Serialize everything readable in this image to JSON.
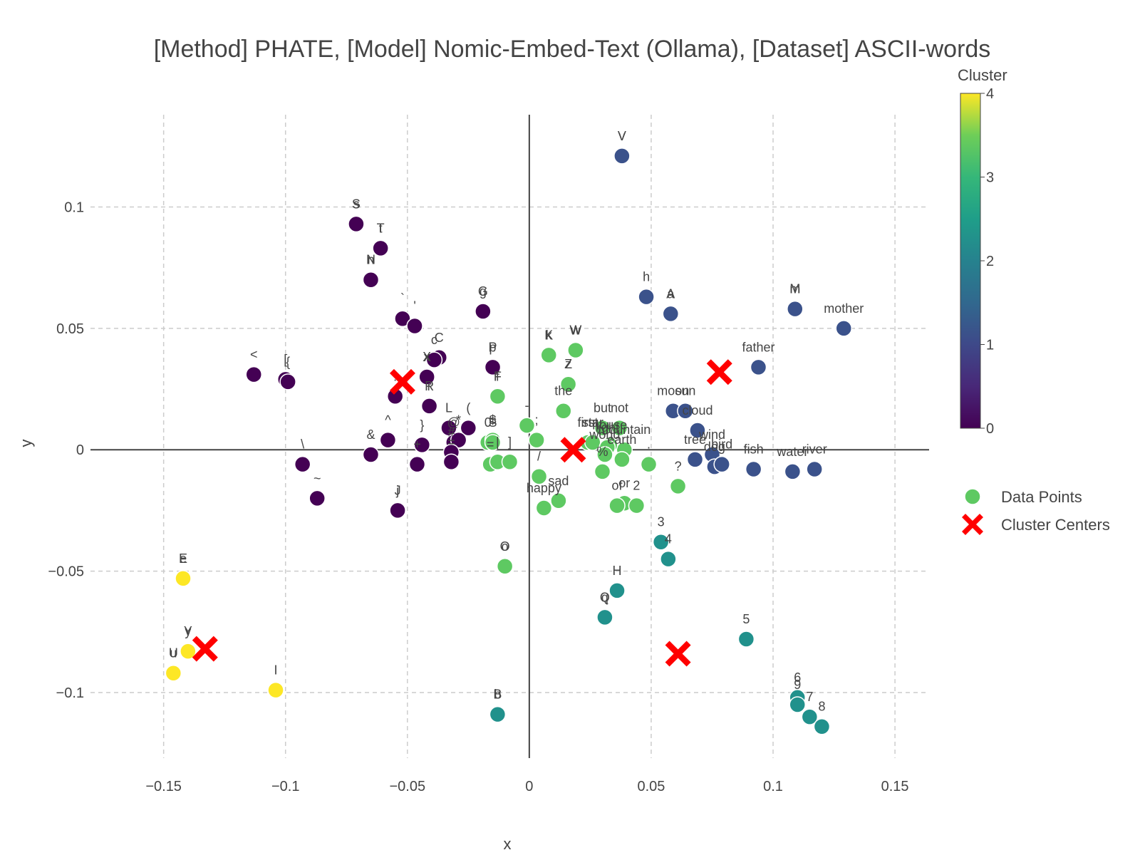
{
  "chart_data": {
    "type": "scatter",
    "title": "[Method] PHATE, [Model] Nomic-Embed-Text (Ollama), [Dataset] ASCII-words",
    "xlabel": "x",
    "ylabel": "y",
    "xlim": [
      -0.18,
      0.164
    ],
    "ylim": [
      -0.127,
      0.138
    ],
    "xticks": [
      -0.15,
      -0.1,
      -0.05,
      0,
      0.05,
      0.1,
      0.15
    ],
    "xtick_labels": [
      "−0.15",
      "−0.1",
      "−0.05",
      "0",
      "0.05",
      "0.1",
      "0.15"
    ],
    "yticks": [
      -0.1,
      -0.05,
      0,
      0.05,
      0.1
    ],
    "ytick_labels": [
      "−0.1",
      "−0.05",
      "0",
      "0.05",
      "0.1"
    ],
    "grid": true,
    "colorbar": {
      "title": "Cluster",
      "min": 0,
      "max": 4,
      "ticks": [
        0,
        1,
        2,
        3,
        4
      ],
      "colorscale": "viridis"
    },
    "legend": {
      "position": "right",
      "entries": [
        "Data Points",
        "Cluster Centers"
      ]
    },
    "cluster_colors": [
      "#440154",
      "#3b528b",
      "#21918c",
      "#5ec962",
      "#fde725"
    ],
    "center_color": "#ff0000",
    "points": [
      {
        "label": "V",
        "x": 0.038,
        "y": 0.121,
        "c": 1
      },
      {
        "label": "v",
        "x": 0.038,
        "y": 0.121,
        "c": 1
      },
      {
        "label": "h",
        "x": 0.048,
        "y": 0.063,
        "c": 1
      },
      {
        "label": "A",
        "x": 0.058,
        "y": 0.056,
        "c": 1
      },
      {
        "label": "a",
        "x": 0.058,
        "y": 0.056,
        "c": 1
      },
      {
        "label": "M",
        "x": 0.109,
        "y": 0.058,
        "c": 1
      },
      {
        "label": "m",
        "x": 0.109,
        "y": 0.058,
        "c": 1
      },
      {
        "label": "mother",
        "x": 0.129,
        "y": 0.05,
        "c": 1
      },
      {
        "label": "father",
        "x": 0.094,
        "y": 0.034,
        "c": 1
      },
      {
        "label": "moon",
        "x": 0.059,
        "y": 0.016,
        "c": 1
      },
      {
        "label": "sun",
        "x": 0.064,
        "y": 0.016,
        "c": 1
      },
      {
        "label": "cloud",
        "x": 0.069,
        "y": 0.008,
        "c": 1
      },
      {
        "label": "wind",
        "x": 0.075,
        "y": -0.002,
        "c": 1
      },
      {
        "label": "tree",
        "x": 0.068,
        "y": -0.004,
        "c": 1
      },
      {
        "label": "dog",
        "x": 0.076,
        "y": -0.007,
        "c": 1
      },
      {
        "label": "bird",
        "x": 0.079,
        "y": -0.006,
        "c": 1
      },
      {
        "label": "fish",
        "x": 0.092,
        "y": -0.008,
        "c": 1
      },
      {
        "label": "water",
        "x": 0.108,
        "y": -0.009,
        "c": 1
      },
      {
        "label": "river",
        "x": 0.117,
        "y": -0.008,
        "c": 1
      },
      {
        "label": "S",
        "x": -0.071,
        "y": 0.093,
        "c": 0
      },
      {
        "label": "s",
        "x": -0.071,
        "y": 0.093,
        "c": 0
      },
      {
        "label": "T",
        "x": -0.061,
        "y": 0.083,
        "c": 0
      },
      {
        "label": "t",
        "x": -0.061,
        "y": 0.083,
        "c": 0
      },
      {
        "label": "N",
        "x": -0.065,
        "y": 0.07,
        "c": 0
      },
      {
        "label": "n",
        "x": -0.065,
        "y": 0.07,
        "c": 0
      },
      {
        "label": "`",
        "x": -0.052,
        "y": 0.054,
        "c": 0
      },
      {
        "label": "'",
        "x": -0.047,
        "y": 0.051,
        "c": 0
      },
      {
        "label": "G",
        "x": -0.019,
        "y": 0.057,
        "c": 0
      },
      {
        "label": "g",
        "x": -0.019,
        "y": 0.057,
        "c": 0
      },
      {
        "label": "C",
        "x": -0.037,
        "y": 0.038,
        "c": 0
      },
      {
        "label": "c",
        "x": -0.039,
        "y": 0.037,
        "c": 0
      },
      {
        "label": "X",
        "x": -0.042,
        "y": 0.03,
        "c": 0
      },
      {
        "label": "x",
        "x": -0.042,
        "y": 0.03,
        "c": 0
      },
      {
        "label": "P",
        "x": -0.015,
        "y": 0.034,
        "c": 0
      },
      {
        "label": "p",
        "x": -0.015,
        "y": 0.034,
        "c": 0
      },
      {
        "label": "<",
        "x": -0.113,
        "y": 0.031,
        "c": 0
      },
      {
        "label": "[",
        "x": -0.1,
        "y": 0.029,
        "c": 0
      },
      {
        "label": "{",
        "x": -0.099,
        "y": 0.028,
        "c": 0
      },
      {
        "label": ":",
        "x": -0.055,
        "y": 0.022,
        "c": 0
      },
      {
        "label": "R",
        "x": -0.041,
        "y": 0.018,
        "c": 0
      },
      {
        "label": "r",
        "x": -0.041,
        "y": 0.018,
        "c": 0
      },
      {
        "label": "L",
        "x": -0.033,
        "y": 0.009,
        "c": 0
      },
      {
        "label": "(",
        "x": -0.025,
        "y": 0.009,
        "c": 0
      },
      {
        "label": "@",
        "x": -0.031,
        "y": 0.003,
        "c": 0
      },
      {
        "label": "*",
        "x": -0.029,
        "y": 0.004,
        "c": 0
      },
      {
        "label": "^",
        "x": -0.058,
        "y": 0.004,
        "c": 0
      },
      {
        "label": "&",
        "x": -0.065,
        "y": -0.002,
        "c": 0
      },
      {
        "label": "}",
        "x": -0.044,
        "y": 0.002,
        "c": 0
      },
      {
        "label": "#",
        "x": -0.032,
        "y": -0.001,
        "c": 0
      },
      {
        "label": "+",
        "x": -0.046,
        "y": -0.006,
        "c": 0
      },
      {
        "label": "=",
        "x": -0.032,
        "y": -0.005,
        "c": 0
      },
      {
        "label": "\\",
        "x": -0.093,
        "y": -0.006,
        "c": 0
      },
      {
        "label": "~",
        "x": -0.087,
        "y": -0.02,
        "c": 0
      },
      {
        "label": "J",
        "x": -0.054,
        "y": -0.025,
        "c": 0
      },
      {
        "label": "j",
        "x": -0.054,
        "y": -0.025,
        "c": 0
      },
      {
        "label": "K",
        "x": 0.008,
        "y": 0.039,
        "c": 3
      },
      {
        "label": "k",
        "x": 0.008,
        "y": 0.039,
        "c": 3
      },
      {
        "label": "W",
        "x": 0.019,
        "y": 0.041,
        "c": 3
      },
      {
        "label": "w",
        "x": 0.019,
        "y": 0.041,
        "c": 3
      },
      {
        "label": "Z",
        "x": 0.016,
        "y": 0.027,
        "c": 3
      },
      {
        "label": "z",
        "x": 0.016,
        "y": 0.027,
        "c": 3
      },
      {
        "label": "F",
        "x": -0.013,
        "y": 0.022,
        "c": 3
      },
      {
        "label": "f",
        "x": -0.013,
        "y": 0.022,
        "c": 3
      },
      {
        "label": "the",
        "x": 0.014,
        "y": 0.016,
        "c": 3
      },
      {
        "label": "but",
        "x": 0.03,
        "y": 0.009,
        "c": 3
      },
      {
        "label": "not",
        "x": 0.037,
        "y": 0.009,
        "c": 3
      },
      {
        "label": "-",
        "x": -0.001,
        "y": 0.01,
        "c": 3
      },
      {
        "label": ";",
        "x": 0.003,
        "y": 0.004,
        "c": 3
      },
      {
        "label": "0",
        "x": -0.017,
        "y": 0.003,
        "c": 3
      },
      {
        "label": "$",
        "x": -0.015,
        "y": 0.004,
        "c": 3
      },
      {
        "label": "S",
        "x": -0.015,
        "y": 0.003,
        "c": 3
      },
      {
        "label": "first",
        "x": 0.024,
        "y": 0.003,
        "c": 3
      },
      {
        "label": "star",
        "x": 0.026,
        "y": 0.003,
        "c": 3
      },
      {
        "label": "mountain",
        "x": 0.039,
        "y": 0.0,
        "c": 3
      },
      {
        "label": "house",
        "x": 0.033,
        "y": 0.002,
        "c": 3
      },
      {
        "label": "light",
        "x": 0.032,
        "y": 0.001,
        "c": 3
      },
      {
        "label": "world",
        "x": 0.031,
        "y": -0.002,
        "c": 3
      },
      {
        "label": "earth",
        "x": 0.038,
        "y": -0.004,
        "c": 3
      },
      {
        "label": "=",
        "x": -0.016,
        "y": -0.006,
        "c": 3
      },
      {
        "label": "|",
        "x": -0.013,
        "y": -0.005,
        "c": 3
      },
      {
        "label": "]",
        "x": -0.008,
        "y": -0.005,
        "c": 3
      },
      {
        "label": "/",
        "x": 0.004,
        "y": -0.011,
        "c": 3
      },
      {
        "label": ".",
        "x": 0.049,
        "y": -0.006,
        "c": 3
      },
      {
        "label": "%",
        "x": 0.03,
        "y": -0.009,
        "c": 3
      },
      {
        "label": "?",
        "x": 0.061,
        "y": -0.015,
        "c": 3
      },
      {
        "label": "sad",
        "x": 0.012,
        "y": -0.021,
        "c": 3
      },
      {
        "label": "happy",
        "x": 0.006,
        "y": -0.024,
        "c": 3
      },
      {
        "label": "or",
        "x": 0.039,
        "y": -0.022,
        "c": 3
      },
      {
        "label": "of",
        "x": 0.036,
        "y": -0.023,
        "c": 3
      },
      {
        "label": "2",
        "x": 0.044,
        "y": -0.023,
        "c": 3
      },
      {
        "label": "O",
        "x": -0.01,
        "y": -0.048,
        "c": 3
      },
      {
        "label": "o",
        "x": -0.01,
        "y": -0.048,
        "c": 3
      },
      {
        "label": "3",
        "x": 0.054,
        "y": -0.038,
        "c": 2
      },
      {
        "label": "4",
        "x": 0.057,
        "y": -0.045,
        "c": 2
      },
      {
        "label": "H",
        "x": 0.036,
        "y": -0.058,
        "c": 2
      },
      {
        "label": "Q",
        "x": 0.031,
        "y": -0.069,
        "c": 2
      },
      {
        "label": "q",
        "x": 0.031,
        "y": -0.069,
        "c": 2
      },
      {
        "label": "5",
        "x": 0.089,
        "y": -0.078,
        "c": 2
      },
      {
        "label": "6",
        "x": 0.11,
        "y": -0.102,
        "c": 2
      },
      {
        "label": "9",
        "x": 0.11,
        "y": -0.105,
        "c": 2
      },
      {
        "label": "7",
        "x": 0.115,
        "y": -0.11,
        "c": 2
      },
      {
        "label": "8",
        "x": 0.12,
        "y": -0.114,
        "c": 2
      },
      {
        "label": "B",
        "x": -0.013,
        "y": -0.109,
        "c": 2
      },
      {
        "label": "b",
        "x": -0.013,
        "y": -0.109,
        "c": 2
      },
      {
        "label": "E",
        "x": -0.142,
        "y": -0.053,
        "c": 4
      },
      {
        "label": "e",
        "x": -0.142,
        "y": -0.053,
        "c": 4
      },
      {
        "label": "Y",
        "x": -0.14,
        "y": -0.083,
        "c": 4
      },
      {
        "label": "y",
        "x": -0.14,
        "y": -0.083,
        "c": 4
      },
      {
        "label": "U",
        "x": -0.146,
        "y": -0.092,
        "c": 4
      },
      {
        "label": "u",
        "x": -0.146,
        "y": -0.092,
        "c": 4
      },
      {
        "label": "I",
        "x": -0.104,
        "y": -0.099,
        "c": 4
      }
    ],
    "centers": [
      {
        "x": -0.052,
        "y": 0.028
      },
      {
        "x": 0.078,
        "y": 0.032
      },
      {
        "x": 0.018,
        "y": 0.0
      },
      {
        "x": 0.061,
        "y": -0.084
      },
      {
        "x": -0.133,
        "y": -0.082
      }
    ]
  }
}
